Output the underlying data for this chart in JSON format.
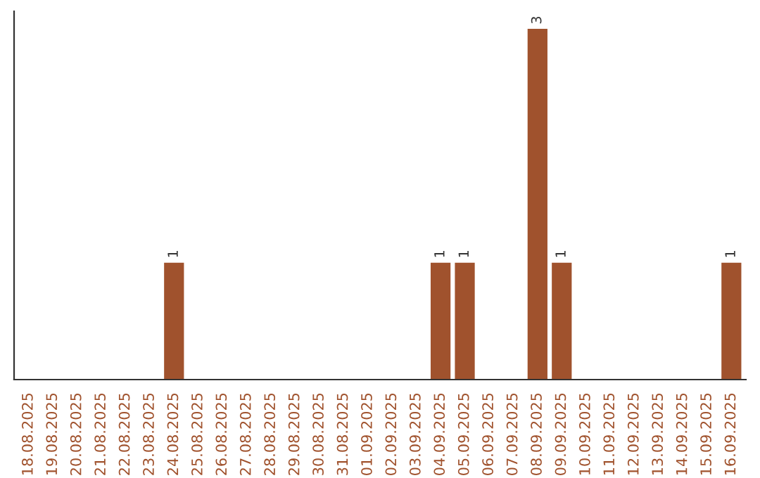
{
  "chart_data": {
    "type": "bar",
    "categories": [
      "18.08.2025",
      "19.08.2025",
      "20.08.2025",
      "21.08.2025",
      "22.08.2025",
      "23.08.2025",
      "24.08.2025",
      "25.08.2025",
      "26.08.2025",
      "27.08.2025",
      "28.08.2025",
      "29.08.2025",
      "30.08.2025",
      "31.08.2025",
      "01.09.2025",
      "02.09.2025",
      "03.09.2025",
      "04.09.2025",
      "05.09.2025",
      "06.09.2025",
      "07.09.2025",
      "08.09.2025",
      "09.09.2025",
      "10.09.2025",
      "11.09.2025",
      "12.09.2025",
      "13.09.2025",
      "14.09.2025",
      "15.09.2025",
      "16.09.2025"
    ],
    "values": [
      0,
      0,
      0,
      0,
      0,
      0,
      1,
      0,
      0,
      0,
      0,
      0,
      0,
      0,
      0,
      0,
      0,
      1,
      1,
      0,
      0,
      3,
      1,
      0,
      0,
      0,
      0,
      0,
      0,
      1
    ],
    "value_labels": [
      null,
      null,
      null,
      null,
      null,
      null,
      "1",
      null,
      null,
      null,
      null,
      null,
      null,
      null,
      null,
      null,
      null,
      "1",
      "1",
      null,
      null,
      "3",
      "1",
      null,
      null,
      null,
      null,
      null,
      null,
      "1"
    ],
    "color": "#a0522d",
    "tick_labels": "x",
    "grid": false,
    "legend": false
  }
}
